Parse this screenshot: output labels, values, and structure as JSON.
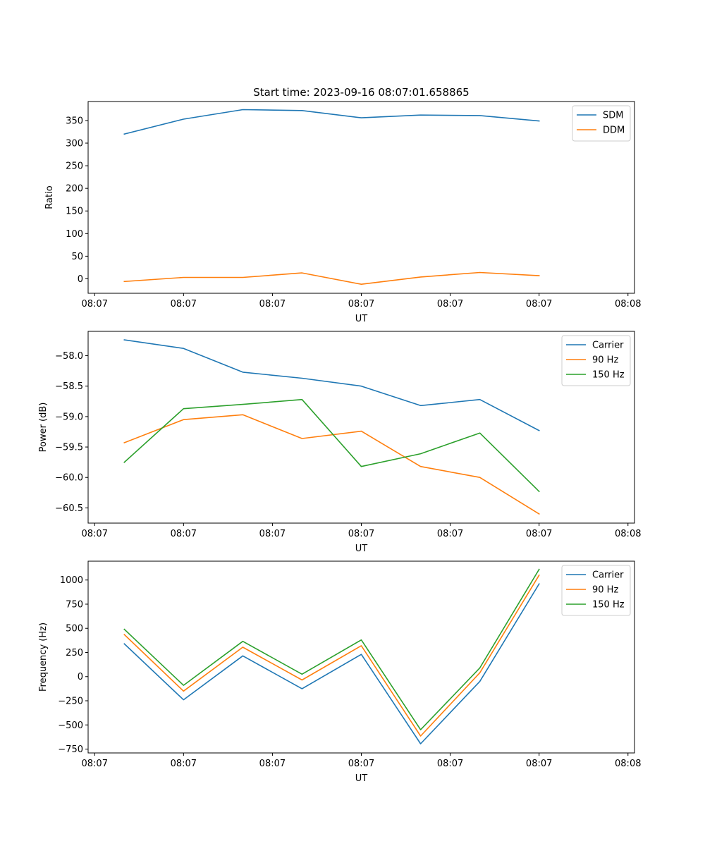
{
  "figure": {
    "title": "Start time: 2023-09-16 08:07:01.658865"
  },
  "chart_data": [
    {
      "type": "line",
      "title": "Start time: 2023-09-16 08:07:01.658865",
      "xlabel": "UT",
      "ylabel": "Ratio",
      "x": [
        0.5,
        1.5,
        2.5,
        3.5,
        4.5,
        5.5,
        6.5,
        7.5
      ],
      "xlim": [
        -0.11,
        9.11
      ],
      "x_ticks": [
        0,
        1.5,
        3,
        4.5,
        6,
        7.5,
        9
      ],
      "x_tick_labels": [
        "08:07",
        "08:07",
        "08:07",
        "08:07",
        "08:07",
        "08:07",
        "08:08"
      ],
      "ylim": [
        -32,
        392
      ],
      "y_ticks": [
        0,
        50,
        100,
        150,
        200,
        250,
        300,
        350
      ],
      "legend_position": "top-right",
      "series": [
        {
          "name": "SDM",
          "color": "#1f77b4",
          "values": [
            320,
            353,
            374,
            372,
            356,
            362,
            361,
            349
          ]
        },
        {
          "name": "DDM",
          "color": "#ff7f0e",
          "values": [
            -6,
            3,
            3,
            13,
            -12,
            4,
            14,
            7
          ]
        }
      ]
    },
    {
      "type": "line",
      "title": "",
      "xlabel": "UT",
      "ylabel": "Power (dB)",
      "x": [
        0.5,
        1.5,
        2.5,
        3.5,
        4.5,
        5.5,
        6.5,
        7.5
      ],
      "xlim": [
        -0.11,
        9.11
      ],
      "x_ticks": [
        0,
        1.5,
        3,
        4.5,
        6,
        7.5,
        9
      ],
      "x_tick_labels": [
        "08:07",
        "08:07",
        "08:07",
        "08:07",
        "08:07",
        "08:07",
        "08:08"
      ],
      "ylim": [
        -60.75,
        -57.6
      ],
      "y_ticks": [
        -60.5,
        -60.0,
        -59.5,
        -59.0,
        -58.5,
        -58.0
      ],
      "y_tick_labels": [
        "−60.5",
        "−60.0",
        "−59.5",
        "−59.0",
        "−58.5",
        "−58.0"
      ],
      "legend_position": "top-right",
      "series": [
        {
          "name": "Carrier",
          "color": "#1f77b4",
          "values": [
            -57.74,
            -57.88,
            -58.27,
            -58.37,
            -58.5,
            -58.82,
            -58.72,
            -59.23
          ]
        },
        {
          "name": "90 Hz",
          "color": "#ff7f0e",
          "values": [
            -59.43,
            -59.05,
            -58.97,
            -59.36,
            -59.24,
            -59.82,
            -60.0,
            -60.6
          ]
        },
        {
          "name": "150 Hz",
          "color": "#2ca02c",
          "values": [
            -59.75,
            -58.87,
            -58.8,
            -58.72,
            -59.82,
            -59.61,
            -59.27,
            -60.23
          ]
        }
      ]
    },
    {
      "type": "line",
      "title": "",
      "xlabel": "UT",
      "ylabel": "Frequency (Hz)",
      "x": [
        0.5,
        1.5,
        2.5,
        3.5,
        4.5,
        5.5,
        6.5,
        7.5
      ],
      "xlim": [
        -0.11,
        9.11
      ],
      "x_ticks": [
        0,
        1.5,
        3,
        4.5,
        6,
        7.5,
        9
      ],
      "x_tick_labels": [
        "08:07",
        "08:07",
        "08:07",
        "08:07",
        "08:07",
        "08:07",
        "08:08"
      ],
      "ylim": [
        -790,
        1195
      ],
      "y_ticks": [
        -750,
        -500,
        -250,
        0,
        250,
        500,
        750,
        1000
      ],
      "y_tick_labels": [
        "−750",
        "−500",
        "−250",
        "0",
        "250",
        "500",
        "750",
        "1000"
      ],
      "legend_position": "top-right",
      "series": [
        {
          "name": "Carrier",
          "color": "#1f77b4",
          "values": [
            340,
            -240,
            215,
            -125,
            230,
            -695,
            -50,
            960
          ]
        },
        {
          "name": "90 Hz",
          "color": "#ff7f0e",
          "values": [
            435,
            -150,
            305,
            -35,
            320,
            -615,
            40,
            1050
          ]
        },
        {
          "name": "150 Hz",
          "color": "#2ca02c",
          "values": [
            490,
            -90,
            365,
            25,
            380,
            -550,
            90,
            1110
          ]
        }
      ]
    }
  ]
}
